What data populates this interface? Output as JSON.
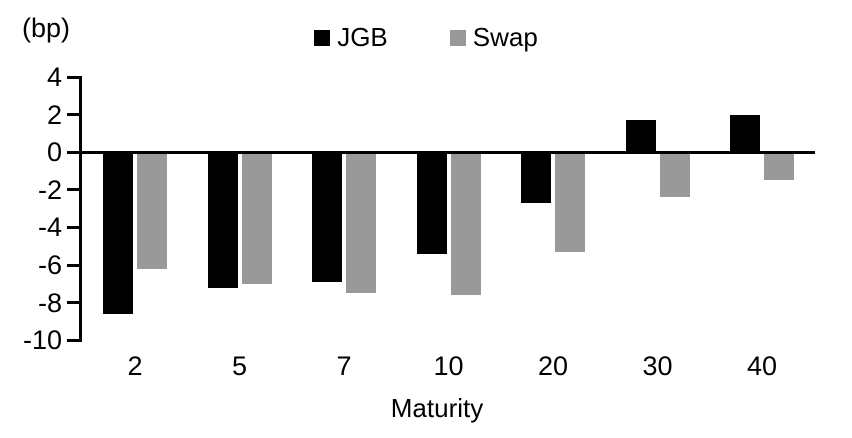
{
  "chart_data": {
    "type": "bar",
    "title": "",
    "unit_label": "(bp)",
    "xlabel": "Maturity",
    "ylabel": "",
    "categories": [
      "2",
      "5",
      "7",
      "10",
      "20",
      "30",
      "40"
    ],
    "series": [
      {
        "name": "JGB",
        "color": "#000000",
        "values": [
          -8.6,
          -7.2,
          -6.9,
          -5.4,
          -2.7,
          1.7,
          2.0
        ]
      },
      {
        "name": "Swap",
        "color": "#999999",
        "values": [
          -6.2,
          -7.0,
          -7.5,
          -7.6,
          -5.3,
          -2.4,
          -1.5
        ]
      }
    ],
    "ylim": [
      -10,
      4
    ],
    "yticks": [
      4,
      2,
      0,
      -2,
      -4,
      -6,
      -8,
      -10
    ],
    "grid": false,
    "legend_position": "top-center",
    "axis_color": "#000000"
  }
}
